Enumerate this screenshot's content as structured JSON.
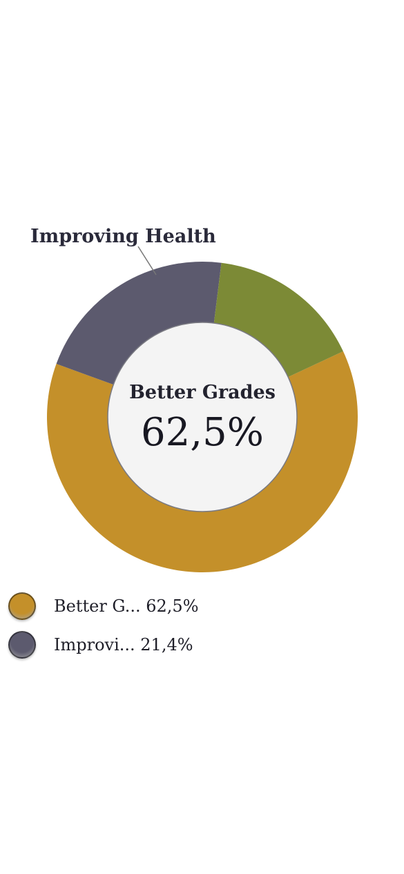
{
  "chart_data": {
    "type": "pie",
    "variant": "donut",
    "slices": [
      {
        "label": "Better Grades",
        "value": 62.5,
        "color": "#c4902a"
      },
      {
        "label": "Improving Health",
        "value": 21.4,
        "color": "#5c5a6e"
      },
      {
        "label": "",
        "value": 16.1,
        "color": "#7c8a36"
      }
    ],
    "callout_label": "Improving Health",
    "center": {
      "label": "Better Grades",
      "value_text": "62,5%"
    },
    "legend": [
      {
        "text": "Better G... 62,5%",
        "color": "#c4902a"
      },
      {
        "text": "Improvi... 21,4%",
        "color": "#5c5a6e"
      }
    ],
    "center_fill": "#f4f4f4"
  }
}
